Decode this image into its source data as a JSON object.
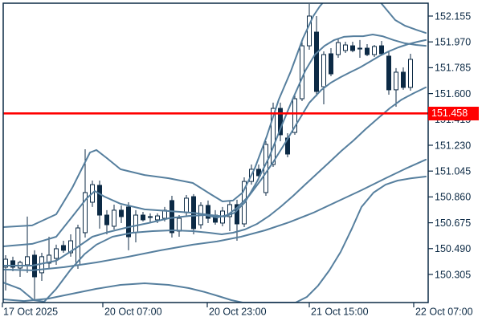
{
  "colors": {
    "background": "#ffffff",
    "frame": "#0c2a45",
    "text": "#0c2a45",
    "band": "#567f9e",
    "candle_outline": "#0c2a45",
    "bull_fill": "#ffffff",
    "bear_fill": "#0c2a45",
    "price_line": "#ff0000",
    "badge_bg": "#ff0000",
    "badge_text": "#ffffff"
  },
  "chart_data": {
    "type": "candlestick",
    "grid": "off",
    "legend": "none",
    "y_range": [
      150.104,
      152.247
    ],
    "y_axis": {
      "side": "right",
      "ticks": [
        152.155,
        151.97,
        151.785,
        151.6,
        151.415,
        151.23,
        151.045,
        150.86,
        150.675,
        150.49,
        150.305
      ]
    },
    "x_axis": {
      "labels": [
        "17 Oct 2025",
        "20 Oct 07:00",
        "20 Oct 23:00",
        "21 Oct 15:00",
        "22 Oct 07:00"
      ],
      "tick_positions": [
        -0.444,
        13.444,
        27.889,
        42.0,
        56.444
      ]
    },
    "price_line": {
      "price": 151.458,
      "label": "151.458"
    },
    "candles": {
      "up_are_hollow": true,
      "ohlc": [
        [
          150.357,
          150.443,
          150.19,
          150.414
        ],
        [
          150.403,
          150.432,
          150.328,
          150.357
        ],
        [
          150.351,
          150.403,
          150.288,
          150.391
        ],
        [
          150.374,
          150.719,
          150.317,
          150.432
        ],
        [
          150.443,
          150.478,
          150.115,
          150.288
        ],
        [
          150.317,
          150.46,
          150.259,
          150.432
        ],
        [
          150.386,
          150.575,
          150.345,
          150.443
        ],
        [
          150.42,
          150.518,
          150.374,
          150.489
        ],
        [
          150.512,
          150.546,
          150.46,
          150.478
        ],
        [
          150.46,
          150.592,
          150.432,
          150.546
        ],
        [
          150.374,
          150.661,
          150.345,
          150.638
        ],
        [
          150.604,
          151.201,
          150.569,
          150.891
        ],
        [
          150.822,
          150.977,
          150.788,
          150.948
        ],
        [
          150.943,
          150.977,
          150.633,
          150.73
        ],
        [
          150.73,
          150.765,
          150.592,
          150.661
        ],
        [
          150.65,
          150.805,
          150.627,
          150.765
        ],
        [
          150.765,
          150.799,
          150.673,
          150.719
        ],
        [
          150.788,
          150.822,
          150.478,
          150.575
        ],
        [
          150.604,
          150.765,
          150.535,
          150.73
        ],
        [
          150.73,
          150.753,
          150.684,
          150.696
        ],
        [
          150.713,
          150.742,
          150.673,
          150.719
        ],
        [
          150.696,
          150.742,
          150.673,
          150.724
        ],
        [
          150.707,
          150.788,
          150.684,
          150.765
        ],
        [
          150.834,
          150.868,
          150.569,
          150.604
        ],
        [
          150.615,
          150.73,
          150.575,
          150.707
        ],
        [
          150.747,
          150.874,
          150.719,
          150.851
        ],
        [
          150.862,
          150.88,
          150.592,
          150.633
        ],
        [
          150.661,
          150.822,
          150.633,
          150.799
        ],
        [
          150.799,
          150.834,
          150.673,
          150.707
        ],
        [
          150.73,
          150.765,
          150.661,
          150.679
        ],
        [
          150.673,
          150.788,
          150.65,
          150.759
        ],
        [
          150.719,
          150.834,
          150.615,
          150.805
        ],
        [
          150.805,
          150.84,
          150.546,
          150.667
        ],
        [
          150.667,
          151.0,
          150.644,
          150.971
        ],
        [
          150.971,
          151.092,
          150.948,
          151.058
        ],
        [
          151.058,
          151.092,
          150.983,
          151.012
        ],
        [
          150.891,
          151.259,
          150.868,
          151.236
        ],
        [
          151.092,
          151.535,
          151.075,
          151.494
        ],
        [
          151.494,
          151.535,
          151.259,
          151.305
        ],
        [
          151.282,
          151.316,
          151.144,
          151.167
        ],
        [
          151.322,
          151.592,
          151.305,
          151.563
        ],
        [
          151.563,
          151.971,
          151.546,
          151.942
        ],
        [
          151.942,
          152.241,
          151.914,
          152.155
        ],
        [
          152.04,
          152.155,
          151.58,
          151.615
        ],
        [
          151.649,
          151.902,
          151.523,
          151.879
        ],
        [
          151.885,
          151.925,
          151.724,
          151.741
        ],
        [
          151.879,
          151.994,
          151.856,
          151.965
        ],
        [
          151.908,
          151.971,
          151.891,
          151.948
        ],
        [
          151.942,
          151.971,
          151.896,
          151.908
        ],
        [
          151.919,
          151.983,
          151.856,
          151.925
        ],
        [
          151.925,
          151.954,
          151.868,
          151.879
        ],
        [
          151.879,
          151.948,
          151.862,
          151.937
        ],
        [
          151.942,
          151.977,
          151.879,
          151.885
        ],
        [
          151.868,
          151.902,
          151.592,
          151.627
        ],
        [
          151.627,
          151.782,
          151.506,
          151.753
        ],
        [
          151.753,
          151.787,
          151.627,
          151.644
        ],
        [
          151.644,
          151.885,
          151.621,
          151.845
        ]
      ]
    },
    "bands": [
      {
        "name": "slow_upper",
        "points": [
          [
            -0.33,
            150.644
          ],
          [
            3.67,
            150.656
          ],
          [
            7.0,
            150.736
          ],
          [
            9.22,
            150.926
          ],
          [
            11.67,
            151.178
          ],
          [
            12.56,
            151.196
          ],
          [
            14.0,
            151.138
          ],
          [
            15.89,
            151.058
          ],
          [
            19.22,
            151.017
          ],
          [
            22.56,
            150.994
          ],
          [
            25.89,
            150.96
          ],
          [
            28.33,
            150.88
          ],
          [
            30.0,
            150.828
          ],
          [
            31.44,
            150.834
          ],
          [
            32.78,
            150.891
          ],
          [
            34.44,
            151.063
          ],
          [
            36.11,
            151.293
          ],
          [
            37.78,
            151.557
          ],
          [
            39.44,
            151.759
          ],
          [
            41.11,
            151.994
          ],
          [
            42.56,
            152.155
          ],
          [
            43.44,
            152.224
          ],
          [
            44.11,
            152.264
          ],
          [
            46.5,
            152.37
          ],
          [
            49.0,
            152.4
          ],
          [
            51.67,
            152.264
          ],
          [
            52.78,
            152.195
          ],
          [
            53.89,
            152.126
          ],
          [
            55.22,
            152.086
          ],
          [
            56.78,
            152.057
          ],
          [
            58.11,
            152.034
          ]
        ]
      },
      {
        "name": "fast_upper",
        "points": [
          [
            -0.33,
            150.506
          ],
          [
            3.67,
            150.524
          ],
          [
            7.0,
            150.575
          ],
          [
            9.22,
            150.719
          ],
          [
            11.22,
            150.851
          ],
          [
            12.33,
            150.902
          ],
          [
            13.67,
            150.862
          ],
          [
            15.89,
            150.811
          ],
          [
            19.22,
            150.771
          ],
          [
            22.56,
            150.759
          ],
          [
            25.89,
            150.747
          ],
          [
            28.33,
            150.73
          ],
          [
            30.33,
            150.719
          ],
          [
            31.67,
            150.747
          ],
          [
            33.11,
            150.822
          ],
          [
            34.78,
            150.971
          ],
          [
            36.44,
            151.144
          ],
          [
            38.11,
            151.362
          ],
          [
            39.78,
            151.569
          ],
          [
            41.44,
            151.764
          ],
          [
            42.78,
            151.879
          ],
          [
            44.11,
            151.942
          ],
          [
            45.44,
            151.983
          ],
          [
            46.78,
            152.006
          ],
          [
            48.11,
            152.011
          ],
          [
            49.44,
            152.011
          ],
          [
            50.78,
            152.023
          ],
          [
            52.11,
            152.011
          ],
          [
            53.67,
            151.983
          ],
          [
            55.22,
            151.96
          ],
          [
            56.78,
            151.948
          ],
          [
            58.11,
            151.942
          ]
        ]
      },
      {
        "name": "fast_middle",
        "points": [
          [
            -0.33,
            150.368
          ],
          [
            3.67,
            150.368
          ],
          [
            7.0,
            150.403
          ],
          [
            9.78,
            150.495
          ],
          [
            12.0,
            150.575
          ],
          [
            14.22,
            150.609
          ],
          [
            17.0,
            150.644
          ],
          [
            19.78,
            150.673
          ],
          [
            22.56,
            150.707
          ],
          [
            25.33,
            150.724
          ],
          [
            27.56,
            150.73
          ],
          [
            29.22,
            150.713
          ],
          [
            30.67,
            150.73
          ],
          [
            32.0,
            150.782
          ],
          [
            33.67,
            150.868
          ],
          [
            35.33,
            150.983
          ],
          [
            37.0,
            151.109
          ],
          [
            38.67,
            151.247
          ],
          [
            40.33,
            151.391
          ],
          [
            42.0,
            151.534
          ],
          [
            43.67,
            151.626
          ],
          [
            45.0,
            151.678
          ],
          [
            46.33,
            151.718
          ],
          [
            47.67,
            151.753
          ],
          [
            49.0,
            151.787
          ],
          [
            50.33,
            151.827
          ],
          [
            51.67,
            151.868
          ],
          [
            53.0,
            151.902
          ],
          [
            54.33,
            151.931
          ],
          [
            55.67,
            151.954
          ],
          [
            57.0,
            151.971
          ],
          [
            58.11,
            151.983
          ]
        ]
      },
      {
        "name": "slow_middle",
        "points": [
          [
            -0.33,
            150.34
          ],
          [
            3.67,
            150.334
          ],
          [
            8.11,
            150.357
          ],
          [
            12.56,
            150.391
          ],
          [
            17.0,
            150.432
          ],
          [
            21.44,
            150.478
          ],
          [
            25.89,
            150.518
          ],
          [
            29.22,
            150.541
          ],
          [
            32.56,
            150.575
          ],
          [
            35.89,
            150.621
          ],
          [
            39.22,
            150.679
          ],
          [
            42.56,
            150.747
          ],
          [
            45.89,
            150.828
          ],
          [
            49.22,
            150.908
          ],
          [
            52.56,
            150.994
          ],
          [
            55.33,
            151.063
          ],
          [
            58.11,
            151.127
          ]
        ]
      },
      {
        "name": "fast_lower",
        "points": [
          [
            -0.33,
            150.247
          ],
          [
            2.0,
            150.202
          ],
          [
            3.89,
            150.121
          ],
          [
            5.33,
            150.11
          ],
          [
            7.0,
            150.202
          ],
          [
            9.0,
            150.34
          ],
          [
            10.89,
            150.449
          ],
          [
            12.56,
            150.518
          ],
          [
            14.78,
            150.575
          ],
          [
            17.56,
            150.604
          ],
          [
            20.33,
            150.615
          ],
          [
            23.11,
            150.621
          ],
          [
            25.89,
            150.615
          ],
          [
            28.11,
            150.604
          ],
          [
            29.89,
            150.592
          ],
          [
            31.44,
            150.604
          ],
          [
            33.11,
            150.627
          ],
          [
            34.78,
            150.667
          ],
          [
            36.44,
            150.724
          ],
          [
            38.11,
            150.793
          ],
          [
            39.78,
            150.868
          ],
          [
            41.44,
            150.949
          ],
          [
            43.11,
            151.029
          ],
          [
            44.78,
            151.109
          ],
          [
            46.44,
            151.19
          ],
          [
            48.11,
            151.264
          ],
          [
            49.78,
            151.345
          ],
          [
            51.44,
            151.42
          ],
          [
            53.11,
            151.494
          ],
          [
            54.78,
            151.557
          ],
          [
            56.44,
            151.603
          ],
          [
            58.11,
            151.644
          ]
        ]
      },
      {
        "name": "slow_lower",
        "points": [
          [
            -0.33,
            150.127
          ],
          [
            2.56,
            150.115
          ],
          [
            5.89,
            150.132
          ],
          [
            9.22,
            150.167
          ],
          [
            12.56,
            150.202
          ],
          [
            15.89,
            150.23
          ],
          [
            19.22,
            150.242
          ],
          [
            22.56,
            150.23
          ],
          [
            25.33,
            150.207
          ],
          [
            27.56,
            150.179
          ],
          [
            29.44,
            150.15
          ],
          [
            31.22,
            150.121
          ],
          [
            32.78,
            150.104
          ],
          [
            40.11,
            150.104
          ],
          [
            41.67,
            150.144
          ],
          [
            43.22,
            150.225
          ],
          [
            44.78,
            150.334
          ],
          [
            46.33,
            150.466
          ],
          [
            47.89,
            150.633
          ],
          [
            49.22,
            150.788
          ],
          [
            50.89,
            150.891
          ],
          [
            52.56,
            150.948
          ],
          [
            54.22,
            150.977
          ],
          [
            56.11,
            150.994
          ],
          [
            58.11,
            151.006
          ]
        ]
      }
    ]
  }
}
